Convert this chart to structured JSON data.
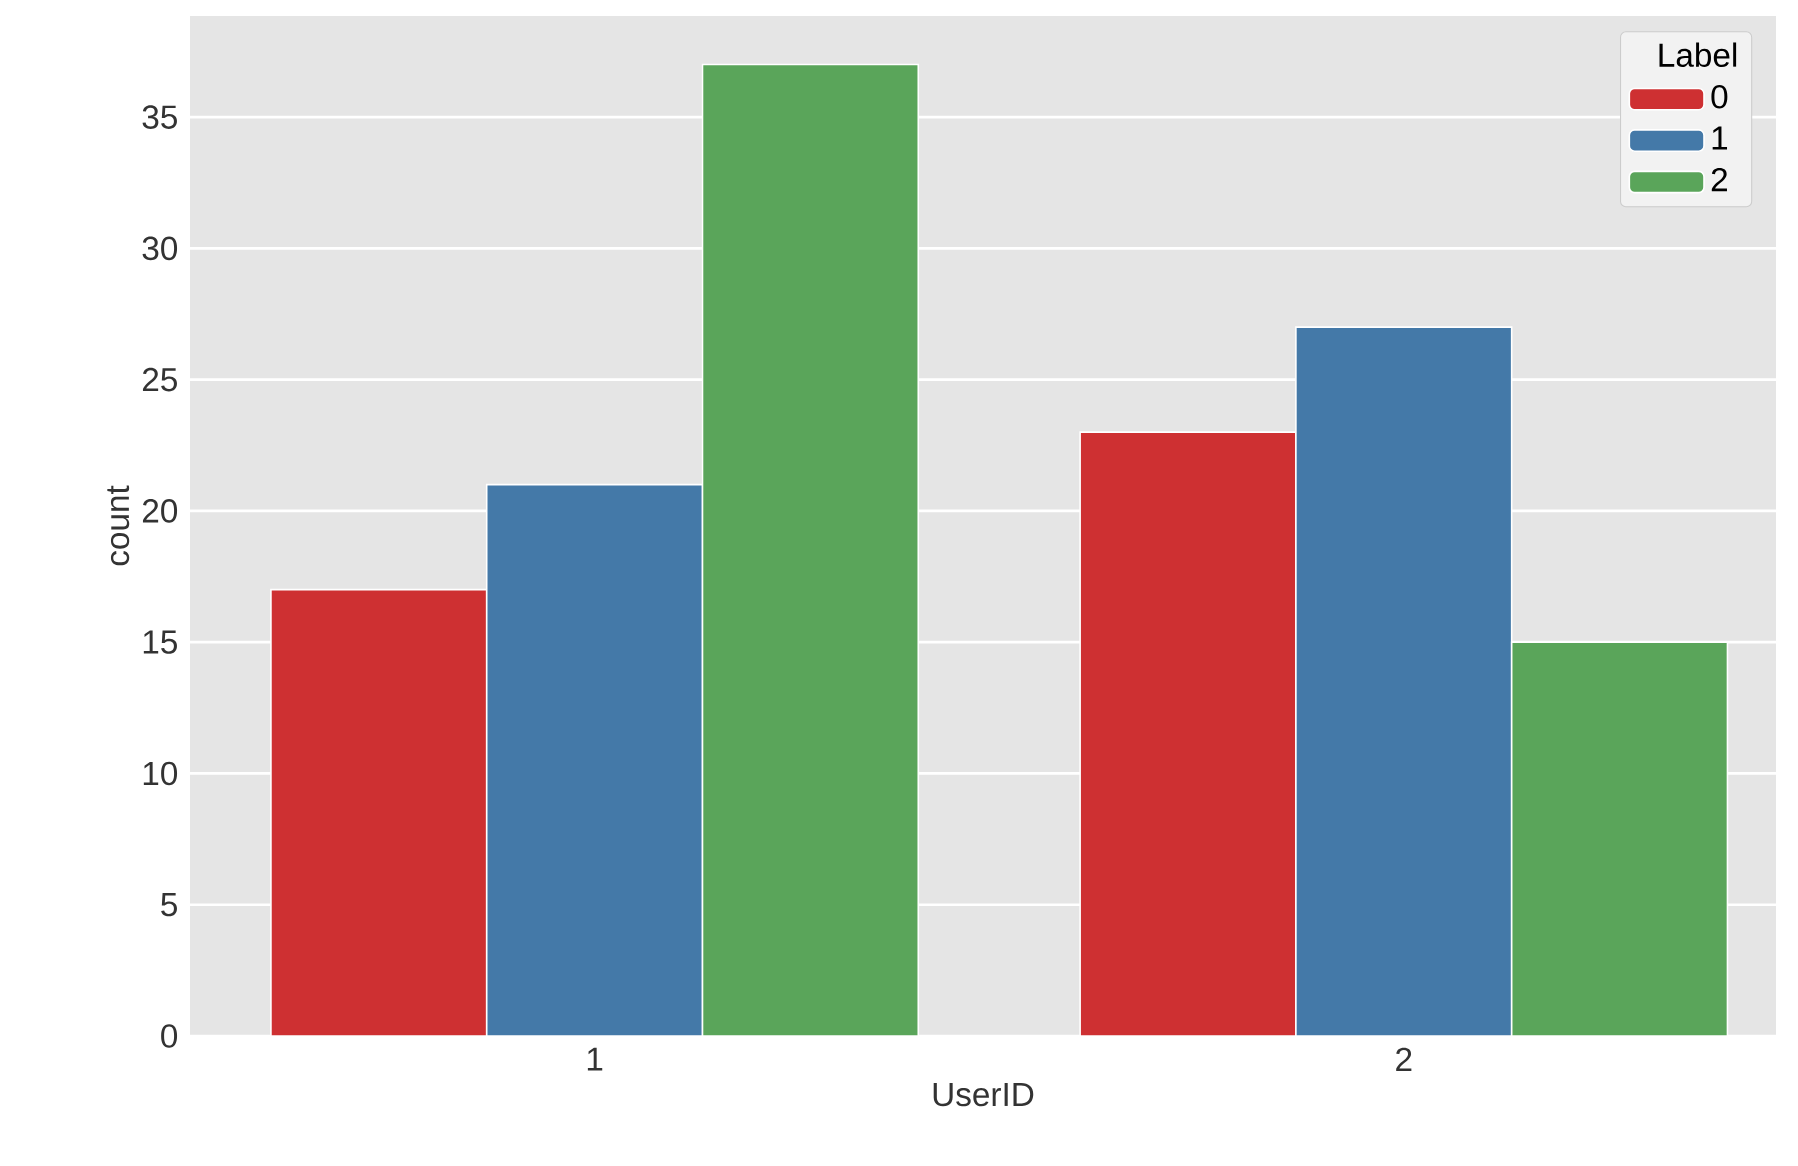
{
  "chart_data": {
    "type": "bar",
    "xlabel": "UserID",
    "ylabel": "count",
    "legend_title": "Label",
    "categories": [
      "1",
      "2"
    ],
    "series": [
      {
        "name": "0",
        "color": "#ce3032",
        "values": [
          17,
          23
        ]
      },
      {
        "name": "1",
        "color": "#4479a8",
        "values": [
          21,
          27
        ]
      },
      {
        "name": "2",
        "color": "#5aa55a",
        "values": [
          37,
          15
        ]
      }
    ],
    "ylim": [
      0,
      38.85
    ],
    "yticks": [
      0,
      5,
      10,
      15,
      20,
      25,
      30,
      35
    ],
    "grid": "y",
    "legend": "top right"
  }
}
